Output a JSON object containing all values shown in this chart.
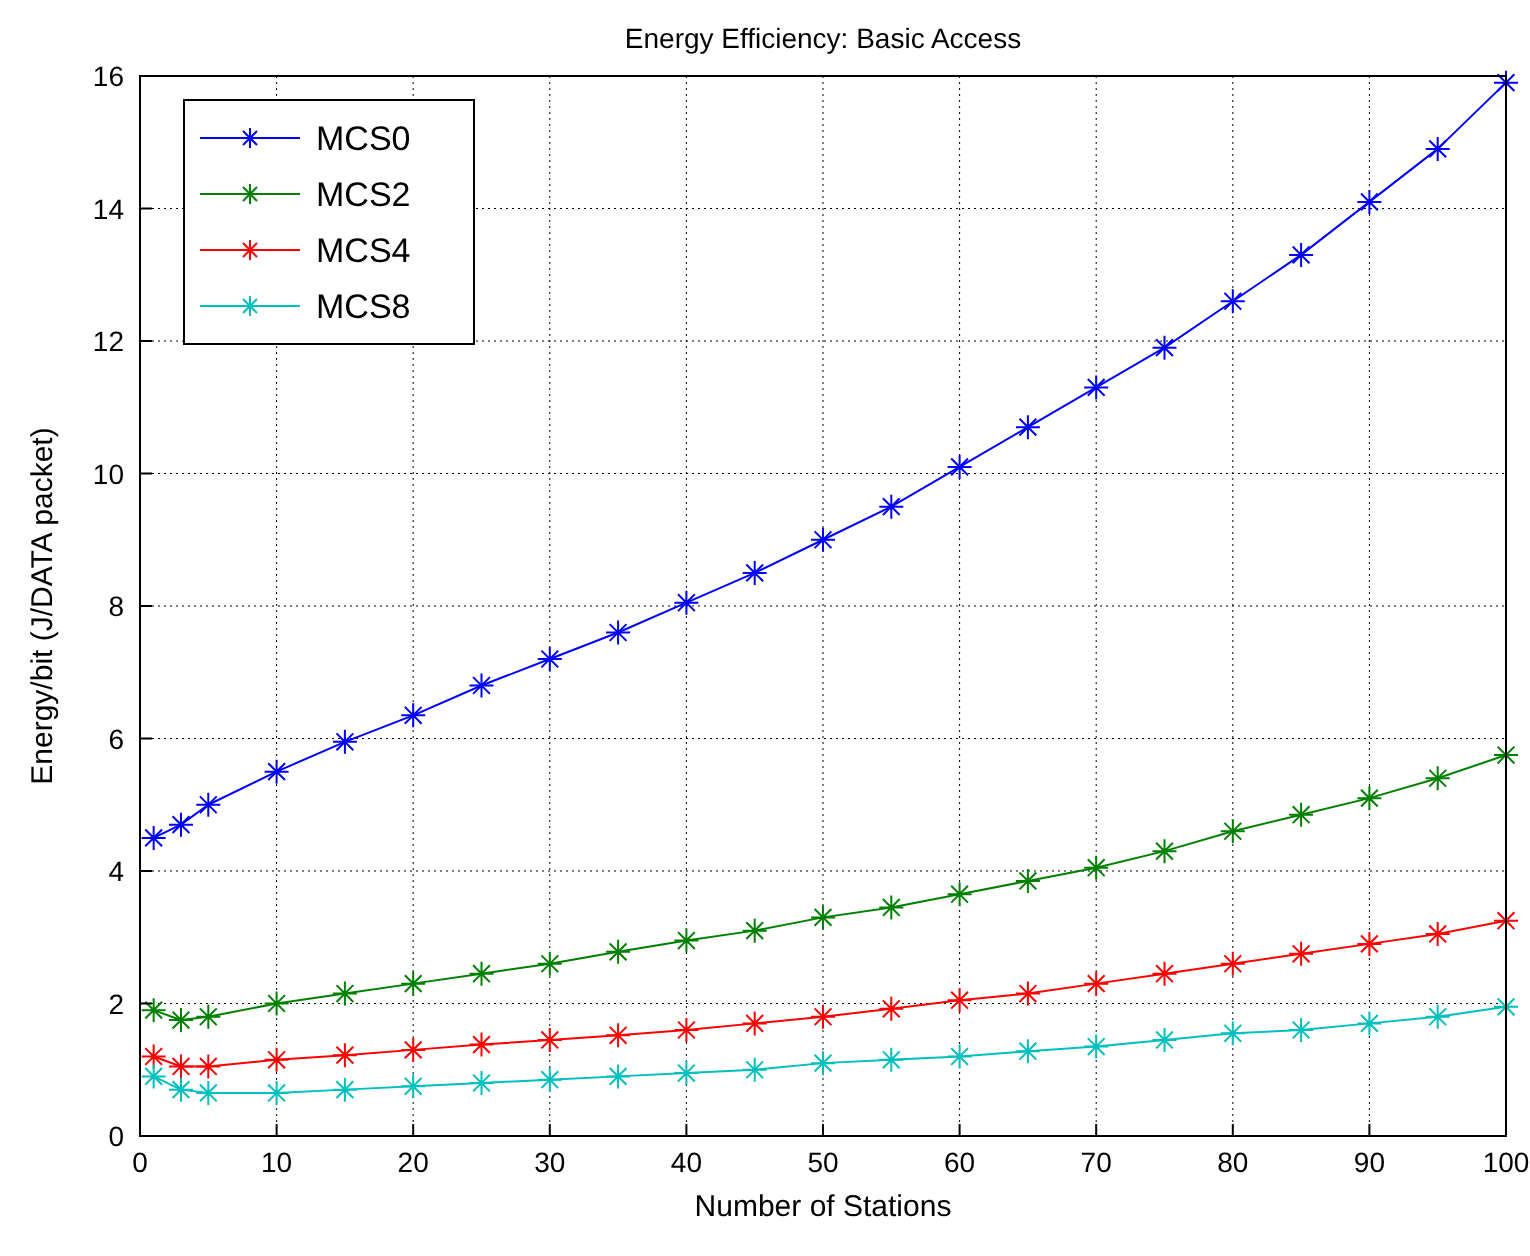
{
  "chart_data": {
    "type": "line",
    "title": "Energy Efficiency: Basic Access",
    "xlabel": "Number of Stations",
    "ylabel": "Energy/bit (J/DATA packet)",
    "x": [
      1,
      3,
      5,
      10,
      15,
      20,
      25,
      30,
      35,
      40,
      45,
      50,
      55,
      60,
      65,
      70,
      75,
      80,
      85,
      90,
      95,
      100
    ],
    "series": [
      {
        "name": "MCS0",
        "color": "#0000ff",
        "values": [
          4.5,
          4.7,
          5.0,
          5.5,
          5.95,
          6.35,
          6.8,
          7.2,
          7.6,
          8.05,
          8.5,
          9.0,
          9.5,
          10.1,
          10.7,
          11.3,
          11.9,
          12.6,
          13.3,
          14.1,
          14.9,
          15.9
        ]
      },
      {
        "name": "MCS2",
        "color": "#008000",
        "values": [
          1.9,
          1.75,
          1.8,
          2.0,
          2.15,
          2.3,
          2.45,
          2.6,
          2.78,
          2.95,
          3.1,
          3.3,
          3.45,
          3.65,
          3.85,
          4.05,
          4.3,
          4.6,
          4.85,
          5.1,
          5.4,
          5.75
        ]
      },
      {
        "name": "MCS4",
        "color": "#ff0000",
        "values": [
          1.2,
          1.05,
          1.05,
          1.15,
          1.22,
          1.3,
          1.38,
          1.45,
          1.52,
          1.6,
          1.7,
          1.8,
          1.92,
          2.05,
          2.15,
          2.3,
          2.45,
          2.6,
          2.75,
          2.9,
          3.05,
          3.25
        ]
      },
      {
        "name": "MCS8",
        "color": "#00bfbf",
        "values": [
          0.9,
          0.7,
          0.65,
          0.65,
          0.7,
          0.75,
          0.8,
          0.85,
          0.9,
          0.95,
          1.0,
          1.1,
          1.15,
          1.2,
          1.28,
          1.35,
          1.45,
          1.55,
          1.6,
          1.7,
          1.8,
          1.95
        ]
      }
    ],
    "xlim": [
      0,
      100
    ],
    "xticks": [
      0,
      10,
      20,
      30,
      40,
      50,
      60,
      70,
      80,
      90,
      100
    ],
    "ylim": [
      0,
      16
    ],
    "yticks": [
      0,
      2,
      4,
      6,
      8,
      10,
      12,
      14,
      16
    ],
    "grid": true,
    "legend": "top left",
    "marker": "cross",
    "line_style": "solid"
  }
}
